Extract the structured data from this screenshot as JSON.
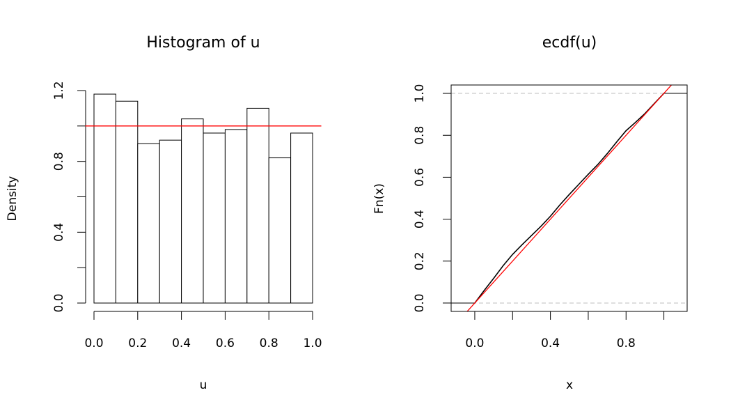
{
  "chart_data": [
    {
      "type": "histogram",
      "title": "Histogram of u",
      "xlabel": "u",
      "ylabel": "Density",
      "bins": [
        0,
        0.1,
        0.2,
        0.3,
        0.4,
        0.5,
        0.6,
        0.7,
        0.8,
        0.9,
        1.0
      ],
      "values": [
        1.18,
        1.14,
        0.9,
        0.92,
        1.04,
        0.96,
        0.98,
        1.1,
        0.82,
        0.96
      ],
      "color": "#ffffff",
      "edge_color": "#000000",
      "xlim": [
        0,
        1
      ],
      "ylim": [
        0,
        1.2
      ],
      "xticks": [
        {
          "value": 0,
          "label": "0.0"
        },
        0.2,
        0.4,
        0.6,
        0.8,
        {
          "value": 1,
          "label": "1.0"
        }
      ],
      "yticks": [
        {
          "value": 0,
          "label": "0.0"
        },
        0.4,
        0.8,
        1.2
      ],
      "yminor_ticks": [
        0.2,
        0.6,
        1.0
      ],
      "reference_line": {
        "intercept": 1,
        "slope": 0,
        "color": "#ff0000"
      }
    },
    {
      "type": "ecdf",
      "title": "ecdf(u)",
      "xlabel": "x",
      "ylabel": "Fn(x)",
      "x": [
        0,
        0.05,
        0.1,
        0.15,
        0.2,
        0.25,
        0.3,
        0.35,
        0.4,
        0.45,
        0.5,
        0.55,
        0.6,
        0.65,
        0.7,
        0.75,
        0.8,
        0.85,
        0.9,
        0.95,
        1.0
      ],
      "values": [
        0,
        0.06,
        0.118,
        0.178,
        0.232,
        0.278,
        0.322,
        0.366,
        0.414,
        0.468,
        0.518,
        0.566,
        0.614,
        0.66,
        0.712,
        0.768,
        0.822,
        0.862,
        0.904,
        0.952,
        1.0
      ],
      "color": "#000000",
      "xlim": [
        -0.125,
        1.123
      ],
      "ylim": [
        -0.04,
        1.04
      ],
      "xticks": [
        {
          "value": 0,
          "label": "0.0"
        },
        0.4,
        0.8
      ],
      "xminor_ticks": [
        0.2,
        0.6,
        1.0
      ],
      "yticks": [
        {
          "value": 0,
          "label": "0.0"
        },
        0.2,
        0.4,
        0.6,
        0.8,
        {
          "value": 1,
          "label": "1.0"
        }
      ],
      "hlines": [
        0,
        1
      ],
      "hline_color": "#bebebe",
      "reference_line": {
        "intercept": 0,
        "slope": 1,
        "color": "#ff0000"
      }
    }
  ]
}
